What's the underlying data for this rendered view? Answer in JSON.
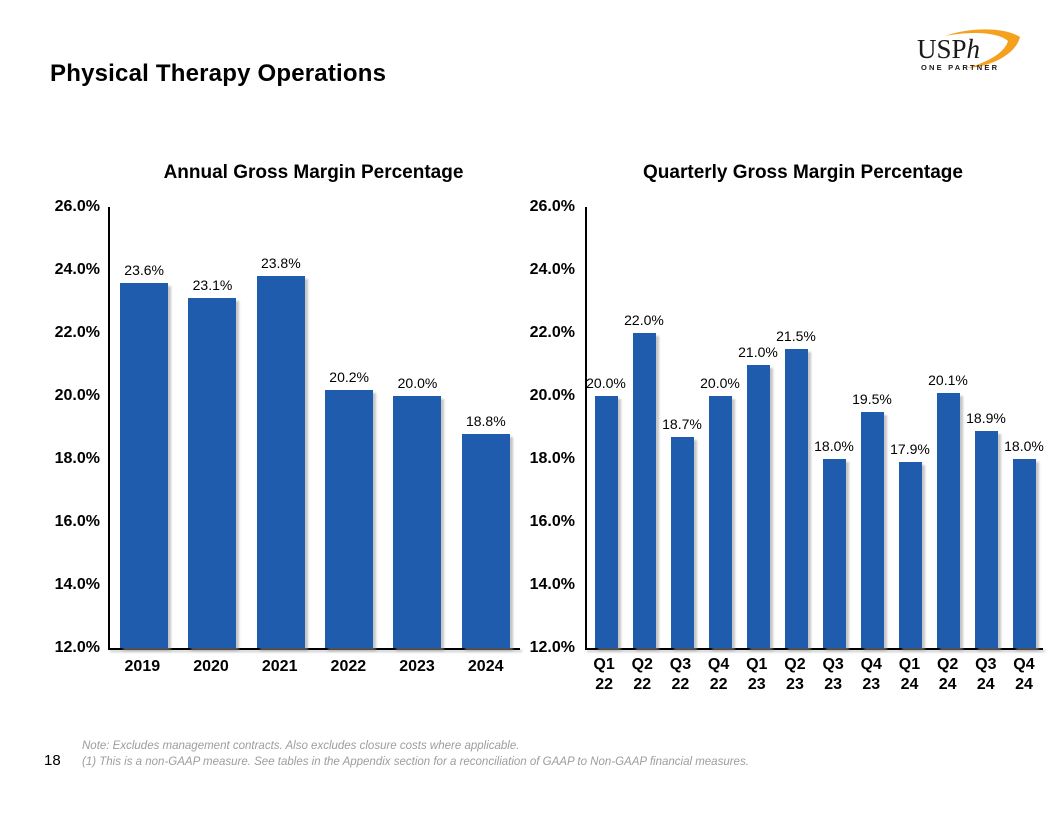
{
  "slide": {
    "title": "Physical Therapy Operations",
    "page_number": "18",
    "footnotes": [
      "Note: Excludes management contracts. Also excludes closure costs where applicable.",
      "(1) This is a non-GAAP measure. See tables in the Appendix section for a reconciliation of GAAP to Non-GAAP financial measures."
    ],
    "logo": {
      "wordmark": "USP",
      "wordmark_italic": "h",
      "tagline": "ONE PARTNER",
      "swoosh_color": "#F5A11E",
      "text_color": "#1a1a1a"
    }
  },
  "colors": {
    "bar": "#1F5CAD",
    "axis": "#000000",
    "data_label": "#000000",
    "footnote": "#9d9d9d"
  },
  "chart_data": [
    {
      "type": "bar",
      "title": "Annual Gross Margin Percentage",
      "categories": [
        "2019",
        "2020",
        "2021",
        "2022",
        "2023",
        "2024"
      ],
      "values": [
        23.6,
        23.1,
        23.8,
        20.2,
        20.0,
        18.8
      ],
      "data_labels": [
        "23.6%",
        "23.1%",
        "23.8%",
        "20.2%",
        "20.0%",
        "18.8%"
      ],
      "ylim": [
        12.0,
        26.0
      ],
      "ytick_step": 2.0,
      "ytick_labels": [
        "26.0%",
        "24.0%",
        "22.0%",
        "20.0%",
        "18.0%",
        "16.0%",
        "14.0%",
        "12.0%"
      ],
      "grid": false,
      "legend": "none",
      "bar_color": "#1F5CAD"
    },
    {
      "type": "bar",
      "title": "Quarterly Gross Margin Percentage",
      "categories": [
        "Q1\n22",
        "Q2\n22",
        "Q3\n22",
        "Q4\n22",
        "Q1\n23",
        "Q2\n23",
        "Q3\n23",
        "Q4\n23",
        "Q1\n24",
        "Q2\n24",
        "Q3\n24",
        "Q4\n24"
      ],
      "values": [
        20.0,
        22.0,
        18.7,
        20.0,
        21.0,
        21.5,
        18.0,
        19.5,
        17.9,
        20.1,
        18.9,
        18.0
      ],
      "data_labels": [
        "20.0%",
        "22.0%",
        "18.7%",
        "20.0%",
        "21.0%",
        "21.5%",
        "18.0%",
        "19.5%",
        "17.9%",
        "20.1%",
        "18.9%",
        "18.0%"
      ],
      "ylim": [
        12.0,
        26.0
      ],
      "ytick_step": 2.0,
      "ytick_labels": [
        "26.0%",
        "24.0%",
        "22.0%",
        "20.0%",
        "18.0%",
        "16.0%",
        "14.0%",
        "12.0%"
      ],
      "grid": false,
      "legend": "none",
      "bar_color": "#1F5CAD"
    }
  ]
}
